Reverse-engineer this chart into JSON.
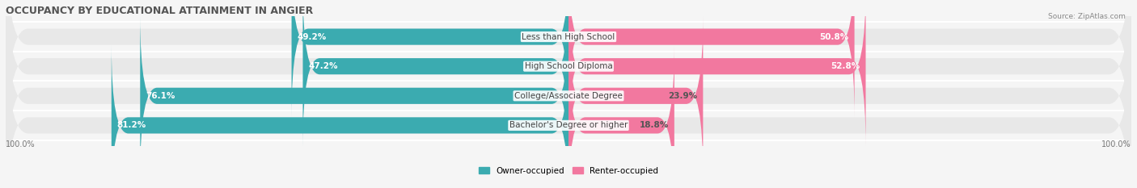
{
  "title": "OCCUPANCY BY EDUCATIONAL ATTAINMENT IN ANGIER",
  "source": "Source: ZipAtlas.com",
  "categories": [
    "Less than High School",
    "High School Diploma",
    "College/Associate Degree",
    "Bachelor's Degree or higher"
  ],
  "owner_values": [
    49.2,
    47.2,
    76.1,
    81.2
  ],
  "renter_values": [
    50.8,
    52.8,
    23.9,
    18.8
  ],
  "owner_color": "#3BABB0",
  "renter_color": "#F2789F",
  "background_color": "#f5f5f5",
  "bar_background": "#e8e8e8",
  "title_fontsize": 9,
  "label_fontsize": 7.5,
  "bar_height": 0.55,
  "x_left_label": "100.0%",
  "x_right_label": "100.0%"
}
